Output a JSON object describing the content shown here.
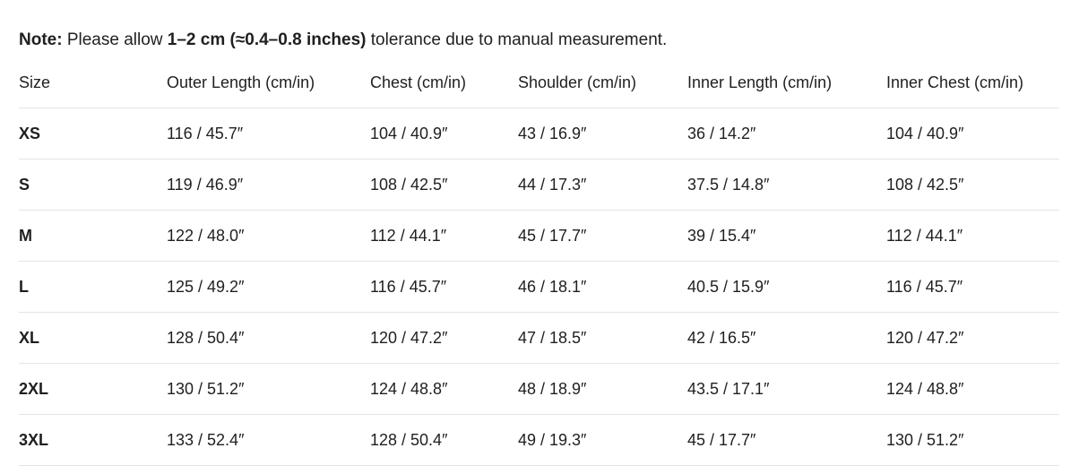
{
  "note": {
    "label": "Note:",
    "prefix": " Please allow ",
    "range": "1–2 cm (≈0.4–0.8 inches)",
    "suffix": " tolerance due to manual measurement."
  },
  "table": {
    "headers": [
      "Size",
      "Outer Length (cm/in)",
      "Chest (cm/in)",
      "Shoulder (cm/in)",
      "Inner Length (cm/in)",
      "Inner Chest (cm/in)"
    ],
    "rows": [
      [
        "XS",
        "116 / 45.7″",
        "104 / 40.9″",
        "43 / 16.9″",
        "36 / 14.2″",
        "104 / 40.9″"
      ],
      [
        "S",
        "119 / 46.9″",
        "108 / 42.5″",
        "44 / 17.3″",
        "37.5 / 14.8″",
        "108 / 42.5″"
      ],
      [
        "M",
        "122 / 48.0″",
        "112 / 44.1″",
        "45 / 17.7″",
        "39 / 15.4″",
        "112 / 44.1″"
      ],
      [
        "L",
        "125 / 49.2″",
        "116 / 45.7″",
        "46 / 18.1″",
        "40.5 / 15.9″",
        "116 / 45.7″"
      ],
      [
        "XL",
        "128 / 50.4″",
        "120 / 47.2″",
        "47 / 18.5″",
        "42 / 16.5″",
        "120 / 47.2″"
      ],
      [
        "2XL",
        "130 / 51.2″",
        "124 / 48.8″",
        "48 / 18.9″",
        "43.5 / 17.1″",
        "124 / 48.8″"
      ],
      [
        "3XL",
        "133 / 52.4″",
        "128 / 50.4″",
        "49 / 19.3″",
        "45 / 17.7″",
        "130 / 51.2″"
      ]
    ]
  }
}
